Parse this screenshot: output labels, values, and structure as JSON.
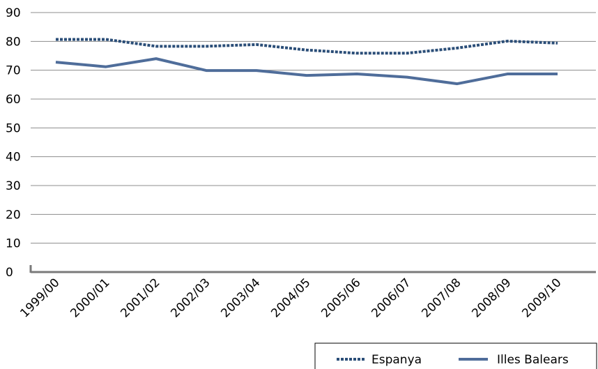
{
  "chart_data": {
    "type": "line",
    "title": "",
    "xlabel": "",
    "ylabel": "",
    "categories": [
      "1999/00",
      "2000/01",
      "2001/02",
      "2002/03",
      "2003/04",
      "2004/05",
      "2005/06",
      "2006/07",
      "2007/08",
      "2008/09",
      "2009/10"
    ],
    "ylim": [
      0,
      90
    ],
    "yticks": [
      0,
      10,
      20,
      30,
      40,
      50,
      60,
      70,
      80,
      90
    ],
    "grid": "horizontal",
    "legend_position": "bottom-right",
    "series": [
      {
        "name": "Espanya",
        "style": "dotted",
        "color": "#2b4e78",
        "values": [
          80.7,
          80.7,
          78.3,
          78.3,
          78.9,
          77.0,
          75.9,
          75.9,
          77.7,
          80.1,
          79.4
        ]
      },
      {
        "name": "Illes Balears",
        "style": "solid",
        "color": "#4f6d9a",
        "values": [
          72.8,
          71.2,
          74.0,
          69.9,
          69.9,
          68.2,
          68.7,
          67.6,
          65.3,
          68.7,
          68.7
        ]
      }
    ]
  }
}
